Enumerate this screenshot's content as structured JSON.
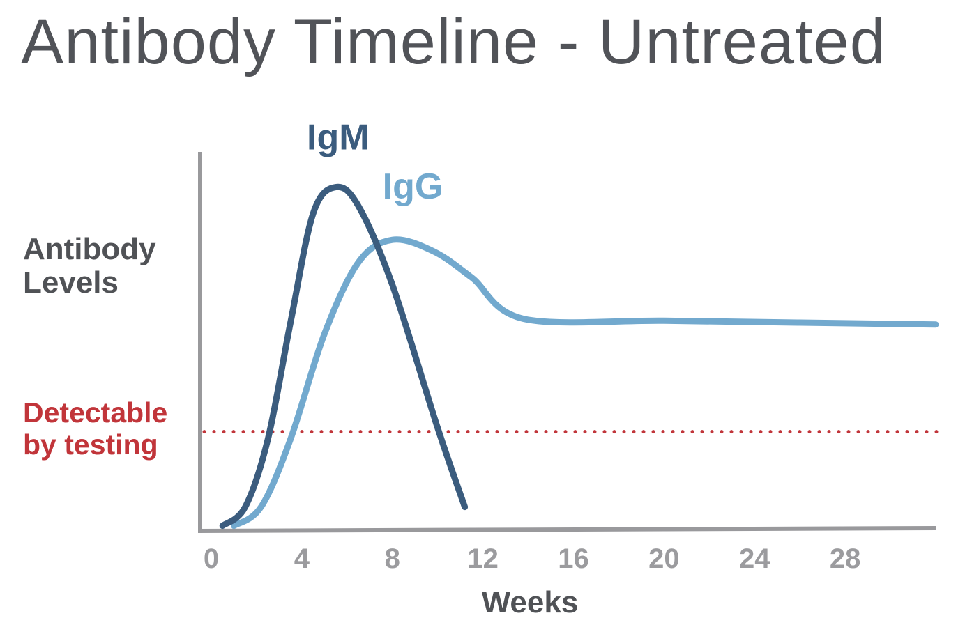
{
  "chart_data": {
    "type": "line",
    "title": "Antibody Timeline - Untreated",
    "xlabel": "Weeks",
    "ylabel": "Antibody Levels",
    "ylabel_lines": [
      "Antibody",
      "Levels"
    ],
    "x_ticks": [
      "0",
      "4",
      "8",
      "12",
      "16",
      "20",
      "24",
      "28"
    ],
    "xlim": [
      0,
      32
    ],
    "ylim": [
      0,
      100
    ],
    "grid": false,
    "legend": "none",
    "series": [
      {
        "name": "IgM",
        "color": "#3b5c7e",
        "points": [
          [
            0.5,
            1
          ],
          [
            1.5,
            6
          ],
          [
            2.5,
            24
          ],
          [
            3.5,
            55
          ],
          [
            4.5,
            84
          ],
          [
            5.5,
            91
          ],
          [
            6.5,
            86
          ],
          [
            8.0,
            65
          ],
          [
            10.0,
            27
          ],
          [
            11.2,
            6
          ]
        ]
      },
      {
        "name": "IgG",
        "color": "#72a9ce",
        "points": [
          [
            1.0,
            1
          ],
          [
            2.2,
            6
          ],
          [
            3.5,
            24
          ],
          [
            5.0,
            52
          ],
          [
            6.5,
            71
          ],
          [
            8.0,
            77
          ],
          [
            9.8,
            74
          ],
          [
            11.5,
            67
          ],
          [
            13.8,
            56
          ],
          [
            20.0,
            55.5
          ],
          [
            26.0,
            55
          ],
          [
            32.0,
            54.5
          ]
        ]
      }
    ],
    "threshold": {
      "label": "Detectable by testing",
      "label_lines": [
        "Detectable",
        "by testing"
      ],
      "value": 26,
      "color": "#c1353a"
    }
  },
  "colors": {
    "axis": "#99999c",
    "title": "#515358",
    "text": "#505256",
    "tick": "#9b9b9e"
  }
}
